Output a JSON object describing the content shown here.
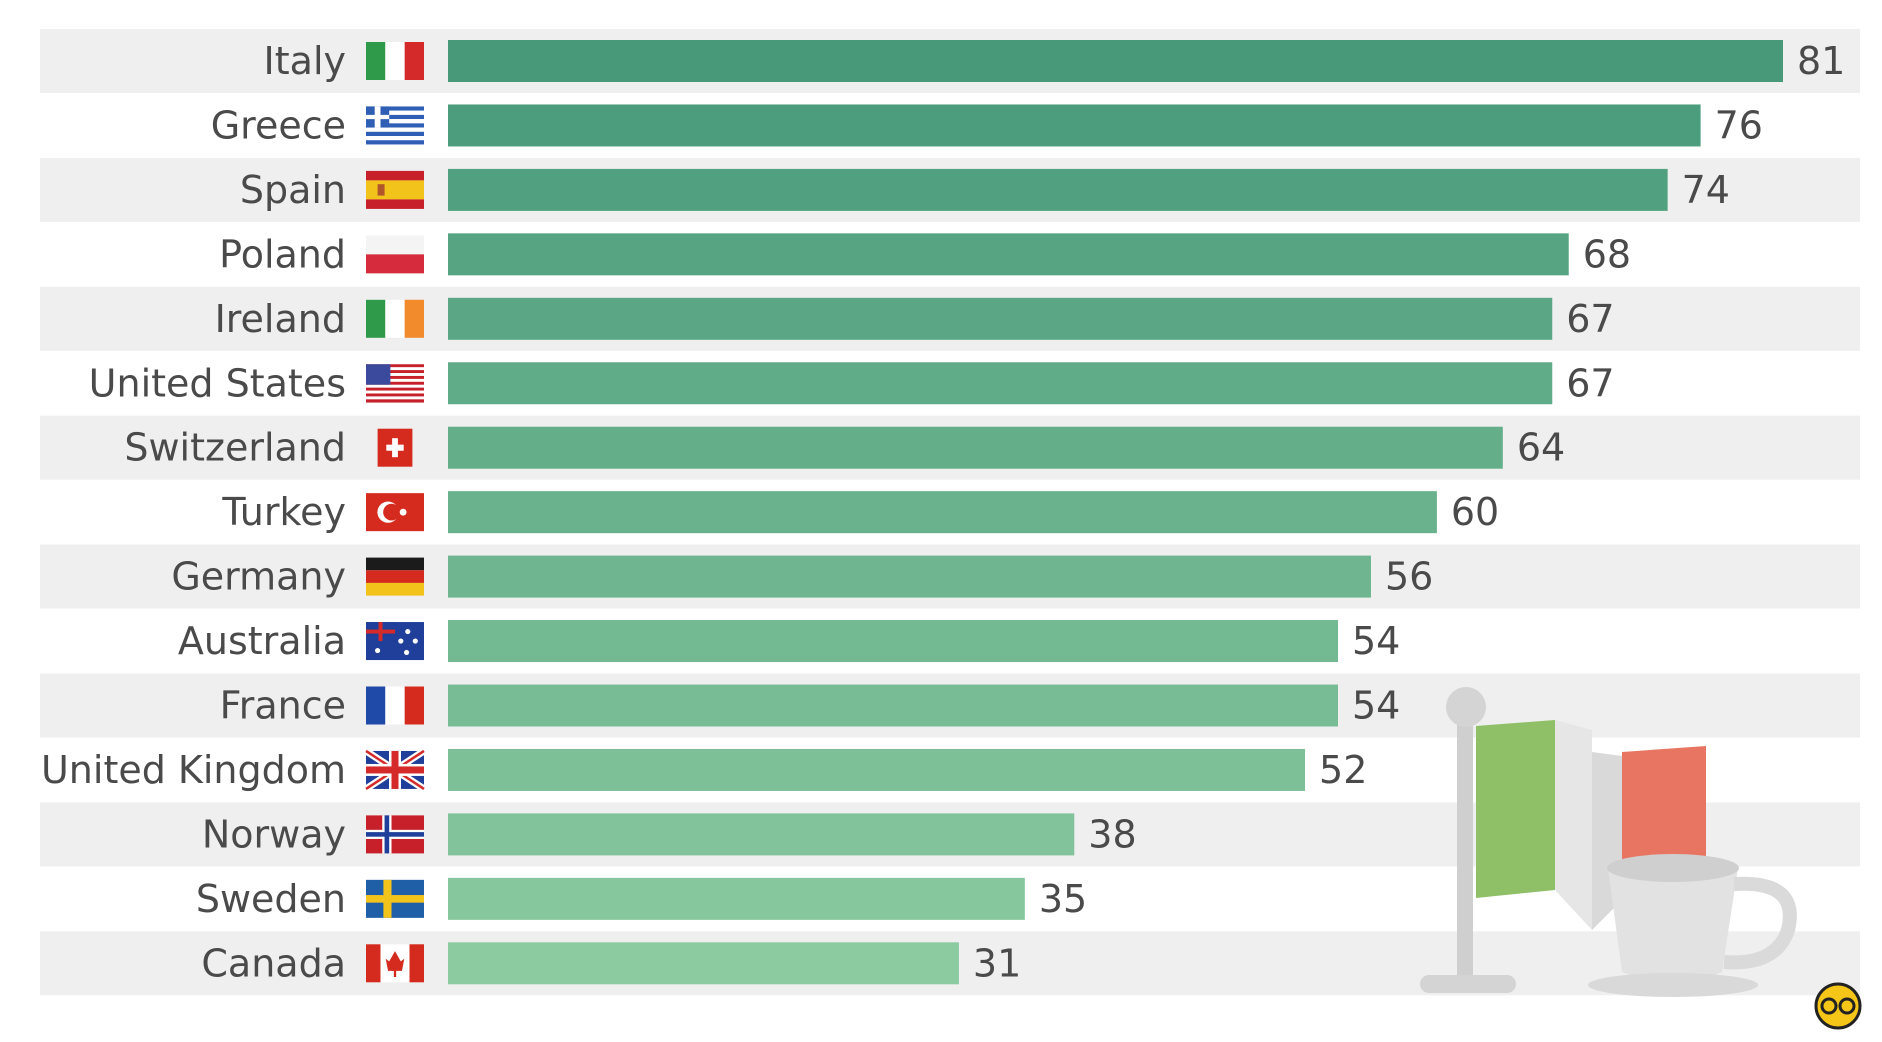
{
  "chart_data": {
    "type": "bar",
    "orientation": "horizontal",
    "title": "",
    "xlabel": "",
    "ylabel": "",
    "xlim": [
      0,
      81
    ],
    "grid": false,
    "legend": "none",
    "categories": [
      "Italy",
      "Greece",
      "Spain",
      "Poland",
      "Ireland",
      "United States",
      "Switzerland",
      "Turkey",
      "Germany",
      "Australia",
      "France",
      "United Kingdom",
      "Norway",
      "Sweden",
      "Canada"
    ],
    "values": [
      81,
      76,
      74,
      68,
      67,
      67,
      64,
      60,
      56,
      54,
      54,
      52,
      38,
      35,
      31
    ],
    "flag_icons": [
      "flag-italy-icon",
      "flag-greece-icon",
      "flag-spain-icon",
      "flag-poland-icon",
      "flag-ireland-icon",
      "flag-united-states-icon",
      "flag-switzerland-icon",
      "flag-turkey-icon",
      "flag-germany-icon",
      "flag-australia-icon",
      "flag-france-icon",
      "flag-united-kingdom-icon",
      "flag-norway-icon",
      "flag-sweden-icon",
      "flag-canada-icon"
    ],
    "colors": {
      "bar_dark": "#47997a",
      "bar_light": "#8ccaa0",
      "row_stripe": "#efefef",
      "label_text": "#4a4a4a"
    }
  },
  "decoration": {
    "illustration": "italian-flag-and-coffee-cup",
    "corner_logo": "statista-logo-icon"
  }
}
